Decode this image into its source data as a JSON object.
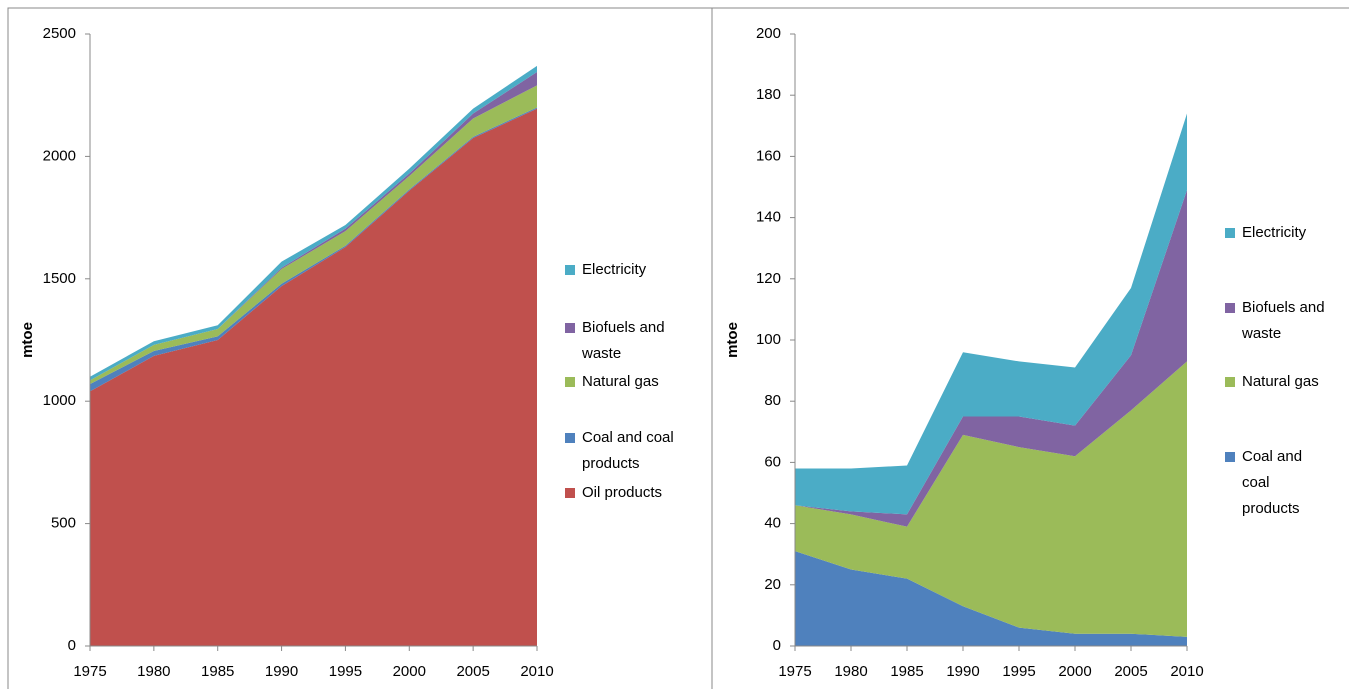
{
  "chart_data": [
    {
      "type": "area",
      "y_label": "mtoe",
      "x": [
        1975,
        1980,
        1985,
        1990,
        1995,
        2000,
        2005,
        2010
      ],
      "xlim": [
        1975,
        2010
      ],
      "xticks": [
        1975,
        1980,
        1985,
        1990,
        1995,
        2000,
        2005,
        2010
      ],
      "ylim": [
        0,
        2500
      ],
      "yticks": [
        0,
        500,
        1000,
        1500,
        2000,
        2500
      ],
      "series": [
        {
          "name": "Oil products",
          "color": "#c0504d",
          "values": [
            1040,
            1185,
            1250,
            1470,
            1630,
            1860,
            2075,
            2195
          ]
        },
        {
          "name": "Coal and coal products",
          "color": "#4f81bd",
          "values": [
            30,
            20,
            15,
            10,
            5,
            5,
            5,
            5
          ]
        },
        {
          "name": "Natural gas",
          "color": "#9bbb59",
          "values": [
            15,
            25,
            30,
            60,
            60,
            55,
            75,
            90
          ]
        },
        {
          "name": "Biofuels and waste",
          "color": "#8064a2",
          "values": [
            0,
            0,
            0,
            5,
            10,
            10,
            20,
            55
          ]
        },
        {
          "name": "Electricity",
          "color": "#4bacc6",
          "values": [
            15,
            15,
            15,
            25,
            15,
            20,
            20,
            25
          ]
        }
      ]
    },
    {
      "type": "area",
      "y_label": "mtoe",
      "x": [
        1975,
        1980,
        1985,
        1990,
        1995,
        2000,
        2005,
        2010
      ],
      "xlim": [
        1975,
        2010
      ],
      "xticks": [
        1975,
        1980,
        1985,
        1990,
        1995,
        2000,
        2005,
        2010
      ],
      "ylim": [
        0,
        200
      ],
      "yticks": [
        0,
        20,
        40,
        60,
        80,
        100,
        120,
        140,
        160,
        180,
        200
      ],
      "series": [
        {
          "name": "Coal and coal products",
          "color": "#4f81bd",
          "values": [
            31,
            25,
            22,
            13,
            6,
            4,
            4,
            3
          ]
        },
        {
          "name": "Natural gas",
          "color": "#9bbb59",
          "values": [
            15,
            18,
            17,
            56,
            59,
            58,
            73,
            90
          ]
        },
        {
          "name": "Biofuels and waste",
          "color": "#8064a2",
          "values": [
            0,
            1,
            4,
            6,
            10,
            10,
            18,
            56
          ]
        },
        {
          "name": "Electricity",
          "color": "#4bacc6",
          "values": [
            12,
            14,
            16,
            21,
            18,
            19,
            22,
            25
          ]
        }
      ]
    }
  ]
}
